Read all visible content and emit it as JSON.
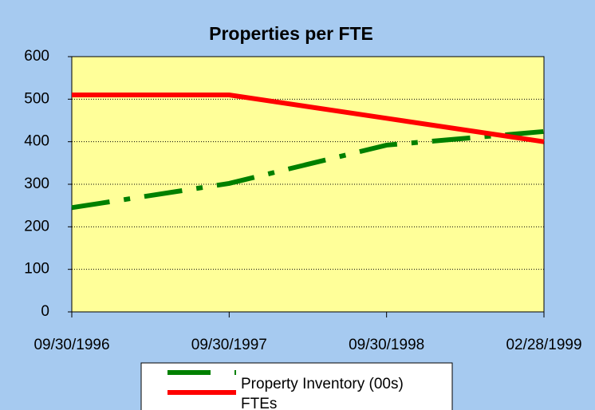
{
  "chart_data": {
    "type": "line",
    "title": "Properties per FTE",
    "categories": [
      "09/30/1996",
      "09/30/1997",
      "09/30/1998",
      "02/28/1999"
    ],
    "series": [
      {
        "name": "Property Inventory (00s)",
        "color": "#008000",
        "dashed": true,
        "values": [
          245,
          302,
          392,
          424
        ]
      },
      {
        "name": "FTEs",
        "color": "#ff0000",
        "dashed": false,
        "values": [
          510,
          510,
          455,
          400
        ]
      }
    ],
    "ylim": [
      0,
      600
    ],
    "yticks": [
      0,
      100,
      200,
      300,
      400,
      500,
      600
    ],
    "grid": true
  }
}
